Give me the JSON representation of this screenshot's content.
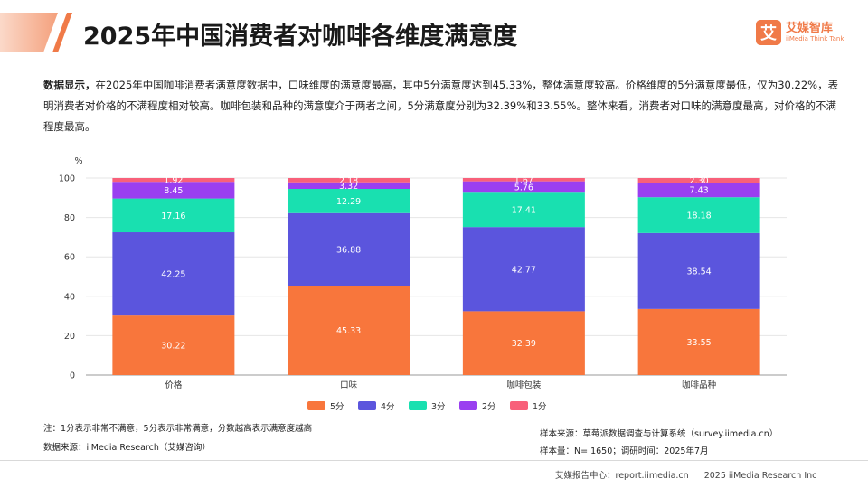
{
  "header": {
    "title": "2025年中国消费者对咖啡各维度满意度",
    "logo_mark": "艾",
    "logo_cn": "艾媒智库",
    "logo_en": "iiMedia Think Tank"
  },
  "description": {
    "lead": "数据显示，",
    "body": "在2025年中国咖啡消费者满意度数据中，口味维度的满意度最高，其中5分满意度达到45.33%，整体满意度较高。价格维度的5分满意度最低，仅为30.22%，表明消费者对价格的不满程度相对较高。咖啡包装和品种的满意度介于两者之间，5分满意度分别为32.39%和33.55%。整体来看，消费者对口味的满意度最高，对价格的不满程度最高。"
  },
  "chart_data": {
    "type": "bar",
    "stacked": true,
    "unit_label": "%",
    "categories": [
      "价格",
      "口味",
      "咖啡包装",
      "咖啡品种"
    ],
    "series": [
      {
        "name": "5分",
        "color": "#f8763c",
        "values": [
          30.22,
          45.33,
          32.39,
          33.55
        ]
      },
      {
        "name": "4分",
        "color": "#5b55dd",
        "values": [
          42.25,
          36.88,
          42.77,
          38.54
        ]
      },
      {
        "name": "3分",
        "color": "#19e0b0",
        "values": [
          17.16,
          12.29,
          17.41,
          18.18
        ]
      },
      {
        "name": "2分",
        "color": "#9a3ff0",
        "values": [
          8.45,
          3.32,
          5.76,
          7.43
        ]
      },
      {
        "name": "1分",
        "color": "#f8607a",
        "values": [
          1.92,
          2.18,
          1.67,
          2.3
        ]
      }
    ],
    "ylim": [
      0,
      100
    ],
    "yticks": [
      0,
      20,
      40,
      60,
      80,
      100
    ],
    "grid": true,
    "legend": "bottom"
  },
  "notes": {
    "note": "注：1分表示非常不满意，5分表示非常满意，分数越高表示满意度越高",
    "data_source": "数据来源：iiMedia Research（艾媒咨询）",
    "sample_source": "样本来源：草莓派数据调查与计算系统（survey.iimedia.cn）",
    "sample_size": "样本量：N= 1650；调研时间：2025年7月"
  },
  "footer": {
    "report_center": "艾媒报告中心：report.iimedia.cn",
    "copyright": "2025 iiMedia Research Inc"
  }
}
